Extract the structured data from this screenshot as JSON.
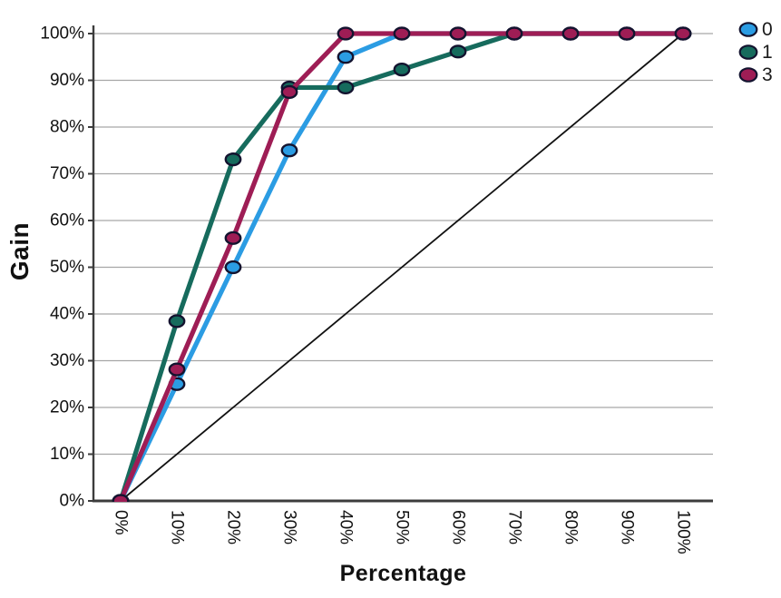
{
  "chart_data": {
    "type": "line",
    "title": "",
    "xlabel": "Percentage",
    "ylabel": "Gain",
    "xlim": [
      0,
      100
    ],
    "ylim": [
      0,
      100
    ],
    "grid": "horizontal-only",
    "legend_position": "top-right",
    "x": [
      0,
      10,
      20,
      30,
      40,
      50,
      60,
      70,
      80,
      90,
      100
    ],
    "x_tick_labels": [
      "0%",
      "10%",
      "20%",
      "30%",
      "40%",
      "50%",
      "60%",
      "70%",
      "80%",
      "90%",
      "100%"
    ],
    "y_tick_labels": [
      "0%",
      "10%",
      "20%",
      "30%",
      "40%",
      "50%",
      "60%",
      "70%",
      "80%",
      "90%",
      "100%"
    ],
    "series": [
      {
        "name": "0",
        "color": "#2B9CE3",
        "values": [
          0,
          25,
          50,
          75,
          95,
          100,
          100,
          100,
          100,
          100,
          100
        ]
      },
      {
        "name": "1",
        "color": "#166B5D",
        "values": [
          0,
          38.46,
          73.08,
          88.46,
          88.46,
          92.31,
          96.15,
          100,
          100,
          100,
          100
        ]
      },
      {
        "name": "3",
        "color": "#9E1D55",
        "values": [
          0,
          28.13,
          56.25,
          87.5,
          100,
          100,
          100,
          100,
          100,
          100,
          100
        ]
      }
    ],
    "baseline": {
      "name": "reference-diagonal",
      "from": [
        0,
        0
      ],
      "to": [
        100,
        100
      ],
      "color": "#111111"
    },
    "colors": {
      "grid": "#a6a6a6",
      "axis": "#3c3c3c",
      "tick_text": "#111111",
      "marker_outline": "#13132f",
      "background": "#ffffff"
    }
  }
}
